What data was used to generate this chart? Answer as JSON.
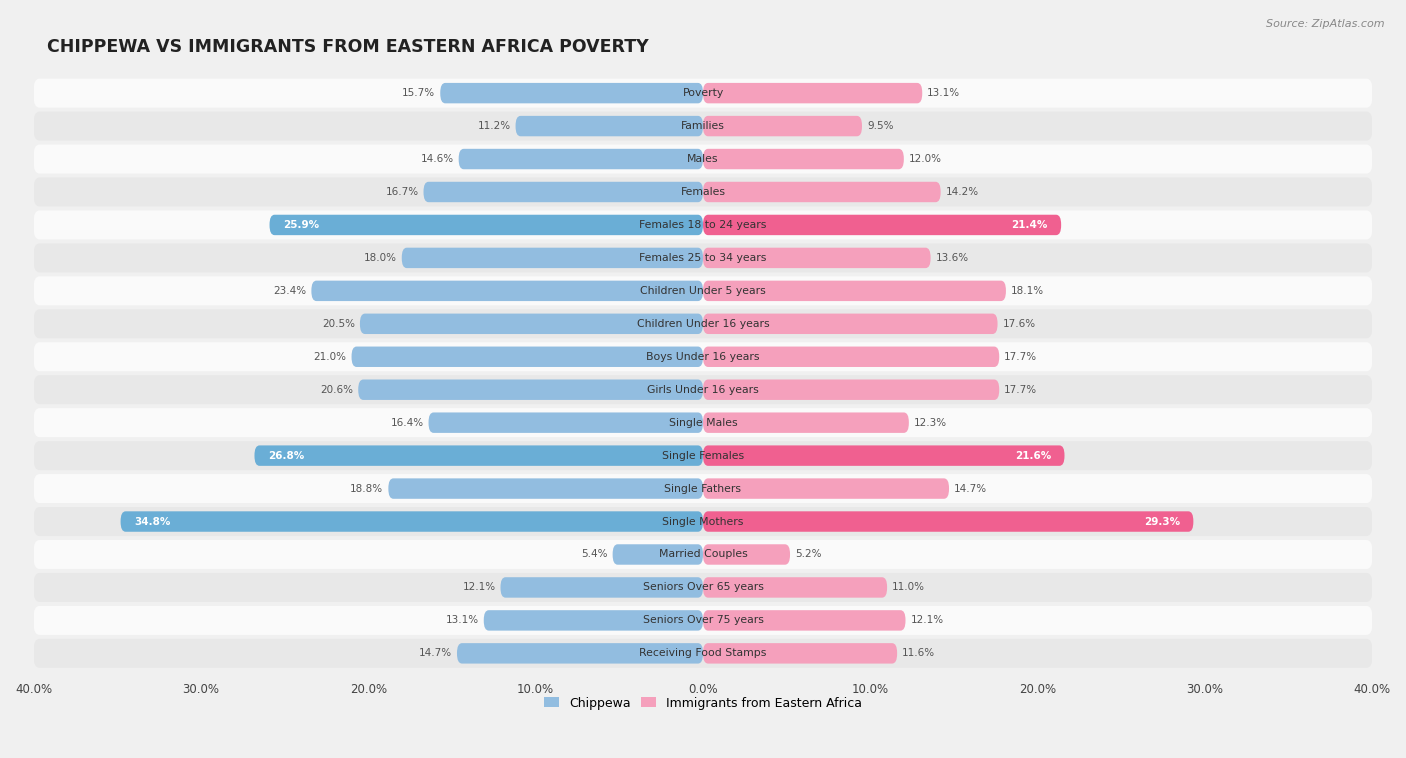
{
  "title": "CHIPPEWA VS IMMIGRANTS FROM EASTERN AFRICA POVERTY",
  "source": "Source: ZipAtlas.com",
  "categories": [
    "Poverty",
    "Families",
    "Males",
    "Females",
    "Females 18 to 24 years",
    "Females 25 to 34 years",
    "Children Under 5 years",
    "Children Under 16 years",
    "Boys Under 16 years",
    "Girls Under 16 years",
    "Single Males",
    "Single Females",
    "Single Fathers",
    "Single Mothers",
    "Married Couples",
    "Seniors Over 65 years",
    "Seniors Over 75 years",
    "Receiving Food Stamps"
  ],
  "chippewa": [
    15.7,
    11.2,
    14.6,
    16.7,
    25.9,
    18.0,
    23.4,
    20.5,
    21.0,
    20.6,
    16.4,
    26.8,
    18.8,
    34.8,
    5.4,
    12.1,
    13.1,
    14.7
  ],
  "eastern_africa": [
    13.1,
    9.5,
    12.0,
    14.2,
    21.4,
    13.6,
    18.1,
    17.6,
    17.7,
    17.7,
    12.3,
    21.6,
    14.7,
    29.3,
    5.2,
    11.0,
    12.1,
    11.6
  ],
  "chippewa_color": "#92bde0",
  "eastern_africa_color": "#f5a0bc",
  "chippewa_highlight_color": "#6aaed6",
  "eastern_africa_highlight_color": "#f06090",
  "highlight_rows": [
    4,
    11,
    13
  ],
  "xlim": 40.0,
  "bar_height": 0.62,
  "background_color": "#f0f0f0",
  "row_bg_light": "#fafafa",
  "row_bg_dark": "#e8e8e8",
  "legend_chippewa": "Chippewa",
  "legend_eastern_africa": "Immigrants from Eastern Africa"
}
